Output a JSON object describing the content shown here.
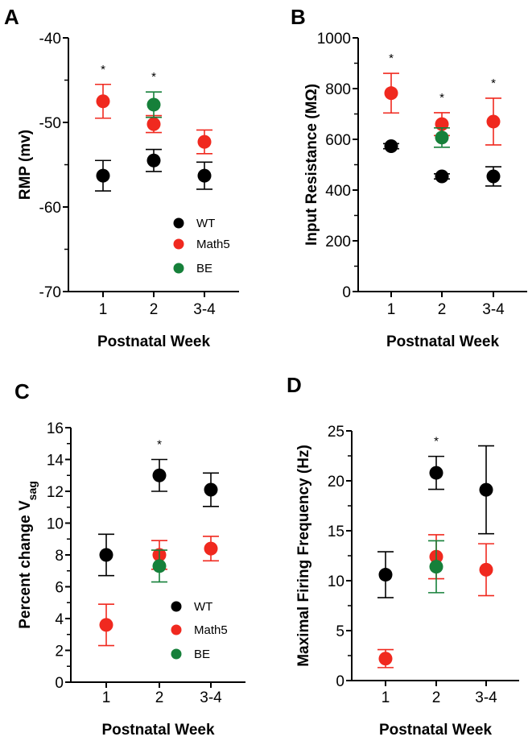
{
  "colors": {
    "WT": "#000000",
    "Math5": "#f0291f",
    "BE": "#16803a"
  },
  "chart_data": [
    {
      "type": "scatter",
      "panel": "A",
      "ylabel": "RMP (mv)",
      "xlabel": "Postnatal Week",
      "categories": [
        "1",
        "2",
        "3-4"
      ],
      "ylim": [
        -70,
        -40
      ],
      "yticks": [
        -70,
        -60,
        -50,
        -40
      ],
      "ytick_labels": [
        "-70",
        "-60",
        "-50",
        "-40"
      ],
      "legend": {
        "placement": "bottom-right",
        "entries": [
          "WT",
          "Math5",
          "BE"
        ]
      },
      "significance": [
        {
          "category": "1",
          "label": "*"
        },
        {
          "category": "2",
          "label": "*"
        }
      ],
      "series": [
        {
          "name": "WT",
          "values": [
            -56.3,
            -54.5,
            -56.3
          ],
          "errors": [
            1.8,
            1.3,
            1.6
          ]
        },
        {
          "name": "Math5",
          "values": [
            -47.5,
            -50.2,
            -52.3
          ],
          "errors": [
            2.0,
            1.0,
            1.4
          ]
        },
        {
          "name": "BE",
          "values": [
            null,
            -47.9,
            null
          ],
          "errors": [
            null,
            1.5,
            null
          ]
        }
      ]
    },
    {
      "type": "scatter",
      "panel": "B",
      "ylabel": "Input Resistance (MΩ)",
      "xlabel": "Postnatal Week",
      "categories": [
        "1",
        "2",
        "3-4"
      ],
      "ylim": [
        0,
        1000
      ],
      "yticks": [
        0,
        200,
        400,
        600,
        800,
        1000
      ],
      "ytick_labels": [
        "0",
        "200",
        "400",
        "600",
        "800",
        "1000"
      ],
      "legend": null,
      "significance": [
        {
          "category": "1",
          "label": "*"
        },
        {
          "category": "2",
          "label": "*"
        },
        {
          "category": "3-4",
          "label": "*"
        }
      ],
      "series": [
        {
          "name": "WT",
          "values": [
            573,
            454,
            454
          ],
          "errors": [
            10,
            10,
            38
          ]
        },
        {
          "name": "Math5",
          "values": [
            782,
            660,
            670
          ],
          "errors": [
            78,
            45,
            92
          ]
        },
        {
          "name": "BE",
          "values": [
            null,
            607,
            null
          ],
          "errors": [
            null,
            38,
            null
          ]
        }
      ]
    },
    {
      "type": "scatter",
      "panel": "C",
      "ylabel": "Percent change V",
      "ylabel_subscript": "sag",
      "xlabel": "Postnatal Week",
      "categories": [
        "1",
        "2",
        "3-4"
      ],
      "ylim": [
        0,
        16
      ],
      "yticks": [
        0,
        2,
        4,
        6,
        8,
        10,
        12,
        14,
        16
      ],
      "ytick_labels": [
        "0",
        "2",
        "4",
        "6",
        "8",
        "10",
        "12",
        "14",
        "16"
      ],
      "legend": {
        "placement": "bottom-right",
        "entries": [
          "WT",
          "Math5",
          "BE"
        ]
      },
      "significance": [
        {
          "category": "2",
          "label": "*"
        }
      ],
      "series": [
        {
          "name": "WT",
          "values": [
            8.0,
            13.0,
            12.1
          ],
          "errors": [
            1.3,
            1.0,
            1.05
          ]
        },
        {
          "name": "Math5",
          "values": [
            3.6,
            8.0,
            8.4
          ],
          "errors": [
            1.3,
            0.9,
            0.77
          ]
        },
        {
          "name": "BE",
          "values": [
            null,
            7.3,
            null
          ],
          "errors": [
            null,
            1.0,
            null
          ]
        }
      ]
    },
    {
      "type": "scatter",
      "panel": "D",
      "ylabel": "Maximal Firing Frequency (Hz)",
      "xlabel": "Postnatal Week",
      "categories": [
        "1",
        "2",
        "3-4"
      ],
      "ylim": [
        0,
        25
      ],
      "yticks": [
        0,
        5,
        10,
        15,
        20,
        25
      ],
      "ytick_labels": [
        "0",
        "5",
        "10",
        "15",
        "20",
        "25"
      ],
      "legend": null,
      "significance": [
        {
          "category": "2",
          "label": "*"
        }
      ],
      "series": [
        {
          "name": "WT",
          "values": [
            10.6,
            20.8,
            19.1
          ],
          "errors": [
            2.3,
            1.65,
            4.4
          ]
        },
        {
          "name": "Math5",
          "values": [
            2.2,
            12.4,
            11.1
          ],
          "errors": [
            0.9,
            2.2,
            2.6
          ]
        },
        {
          "name": "BE",
          "values": [
            null,
            11.4,
            null
          ],
          "errors": [
            null,
            2.6,
            null
          ]
        }
      ]
    }
  ]
}
